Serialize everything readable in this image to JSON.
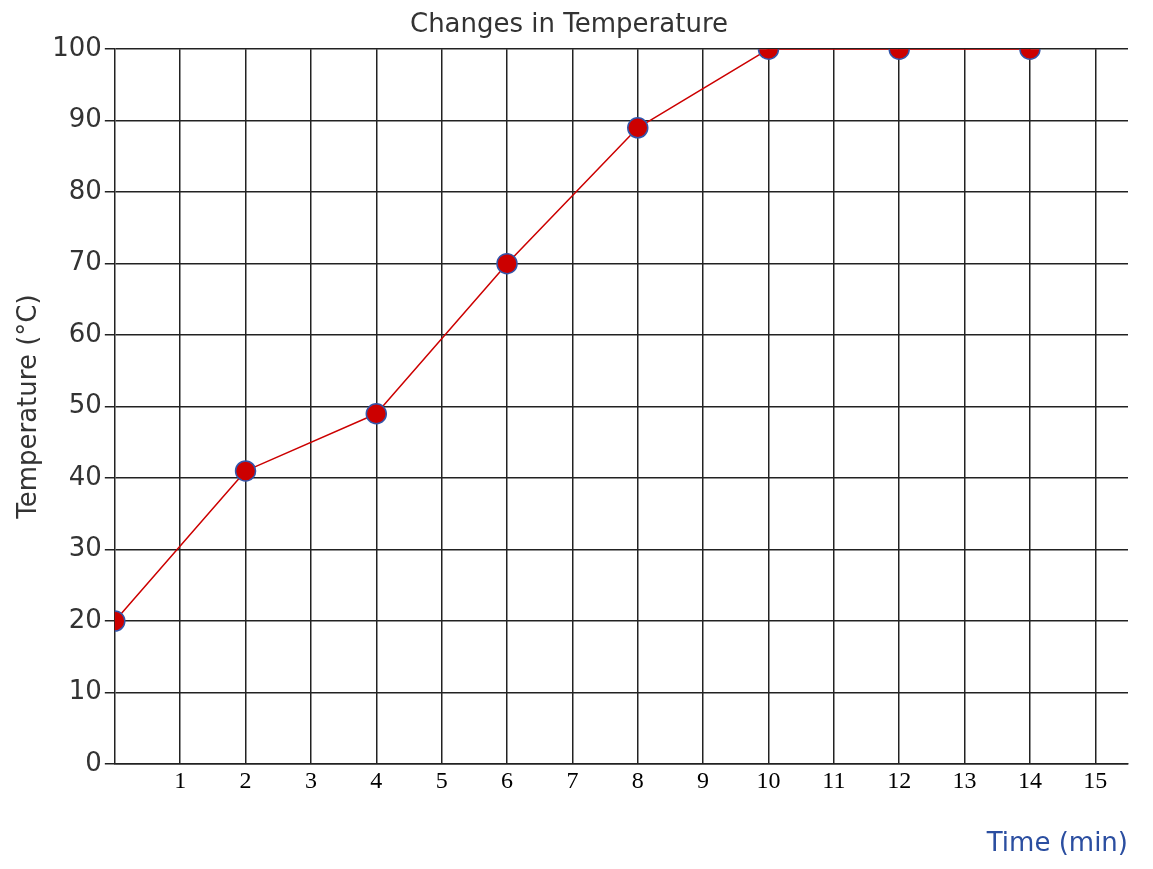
{
  "chart_data": {
    "type": "line",
    "title": "Changes in Temperature",
    "xlabel": "Time (min)",
    "ylabel": "Temperature (°C)",
    "x": [
      0,
      2,
      4,
      6,
      8,
      10,
      12,
      14
    ],
    "series": [
      {
        "color": "#cc0000",
        "values": [
          20,
          41,
          49,
          70,
          89,
          100,
          100,
          100
        ]
      }
    ],
    "xlim": [
      0,
      15.5
    ],
    "xticks": [
      1,
      2,
      3,
      4,
      5,
      6,
      7,
      8,
      9,
      10,
      11,
      12,
      13,
      14,
      15
    ],
    "ylim": [
      0,
      100
    ],
    "yticks": [
      0,
      10,
      20,
      30,
      40,
      50,
      60,
      70,
      80,
      90,
      100
    ],
    "grid": true,
    "legend": false,
    "marker": "circle",
    "line_style": "solid"
  }
}
